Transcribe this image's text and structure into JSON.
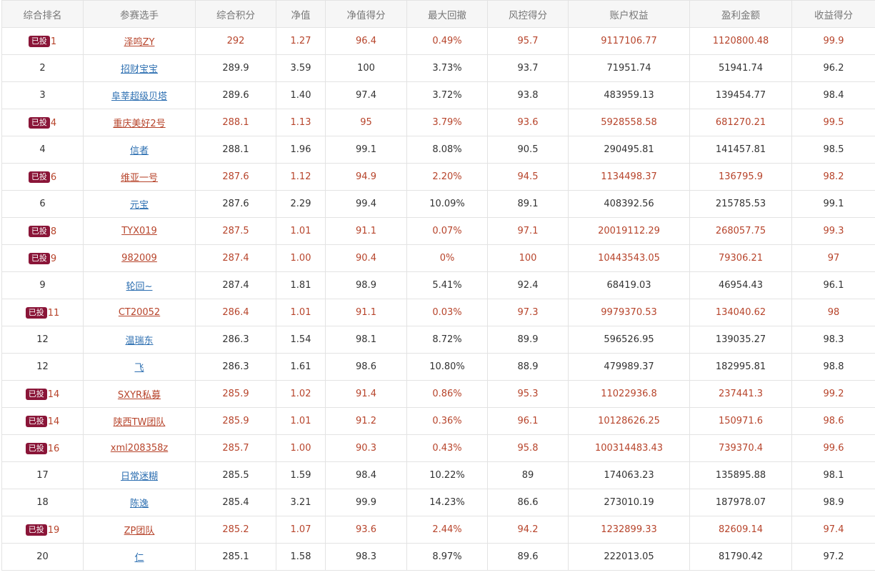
{
  "columns": [
    "综合排名",
    "参赛选手",
    "综合积分",
    "净值",
    "净值得分",
    "最大回撤",
    "风控得分",
    "账户权益",
    "盈利金额",
    "收益得分"
  ],
  "badge_label": "已投",
  "colors": {
    "invested_text": "#b7442b",
    "player_link": "#2d6fb1",
    "badge_bg": "#8a1538",
    "header_bg": "#f6f6f6"
  },
  "rows": [
    {
      "invested": true,
      "rank": "1",
      "player": "泽鸣ZY",
      "score": "292",
      "nav": "1.27",
      "nav_score": "96.4",
      "max_drawdown": "0.49%",
      "risk_score": "95.7",
      "equity": "9117106.77",
      "profit": "1120800.48",
      "return_score": "99.9"
    },
    {
      "invested": false,
      "rank": "2",
      "player": "招财宝宝",
      "score": "289.9",
      "nav": "3.59",
      "nav_score": "100",
      "max_drawdown": "3.73%",
      "risk_score": "93.7",
      "equity": "71951.74",
      "profit": "51941.74",
      "return_score": "96.2"
    },
    {
      "invested": false,
      "rank": "3",
      "player": "阜莘超级贝塔",
      "score": "289.6",
      "nav": "1.40",
      "nav_score": "97.4",
      "max_drawdown": "3.72%",
      "risk_score": "93.8",
      "equity": "483959.13",
      "profit": "139454.77",
      "return_score": "98.4"
    },
    {
      "invested": true,
      "rank": "4",
      "player": "重庆美好2号",
      "score": "288.1",
      "nav": "1.13",
      "nav_score": "95",
      "max_drawdown": "3.79%",
      "risk_score": "93.6",
      "equity": "5928558.58",
      "profit": "681270.21",
      "return_score": "99.5"
    },
    {
      "invested": false,
      "rank": "4",
      "player": "信者",
      "score": "288.1",
      "nav": "1.96",
      "nav_score": "99.1",
      "max_drawdown": "8.08%",
      "risk_score": "90.5",
      "equity": "290495.81",
      "profit": "141457.81",
      "return_score": "98.5"
    },
    {
      "invested": true,
      "rank": "6",
      "player": "维亚一号",
      "score": "287.6",
      "nav": "1.12",
      "nav_score": "94.9",
      "max_drawdown": "2.20%",
      "risk_score": "94.5",
      "equity": "1134498.37",
      "profit": "136795.9",
      "return_score": "98.2"
    },
    {
      "invested": false,
      "rank": "6",
      "player": "元宝",
      "score": "287.6",
      "nav": "2.29",
      "nav_score": "99.4",
      "max_drawdown": "10.09%",
      "risk_score": "89.1",
      "equity": "408392.56",
      "profit": "215785.53",
      "return_score": "99.1"
    },
    {
      "invested": true,
      "rank": "8",
      "player": "TYX019",
      "score": "287.5",
      "nav": "1.01",
      "nav_score": "91.1",
      "max_drawdown": "0.07%",
      "risk_score": "97.1",
      "equity": "20019112.29",
      "profit": "268057.75",
      "return_score": "99.3"
    },
    {
      "invested": true,
      "rank": "9",
      "player": "982009",
      "score": "287.4",
      "nav": "1.00",
      "nav_score": "90.4",
      "max_drawdown": "0%",
      "risk_score": "100",
      "equity": "10443543.05",
      "profit": "79306.21",
      "return_score": "97"
    },
    {
      "invested": false,
      "rank": "9",
      "player": "轮回~",
      "score": "287.4",
      "nav": "1.81",
      "nav_score": "98.9",
      "max_drawdown": "5.41%",
      "risk_score": "92.4",
      "equity": "68419.03",
      "profit": "46954.43",
      "return_score": "96.1"
    },
    {
      "invested": true,
      "rank": "11",
      "player": "CT20052",
      "score": "286.4",
      "nav": "1.01",
      "nav_score": "91.1",
      "max_drawdown": "0.03%",
      "risk_score": "97.3",
      "equity": "9979370.53",
      "profit": "134040.62",
      "return_score": "98"
    },
    {
      "invested": false,
      "rank": "12",
      "player": "温瑞东",
      "score": "286.3",
      "nav": "1.54",
      "nav_score": "98.1",
      "max_drawdown": "8.72%",
      "risk_score": "89.9",
      "equity": "596526.95",
      "profit": "139035.27",
      "return_score": "98.3"
    },
    {
      "invested": false,
      "rank": "12",
      "player": "飞",
      "score": "286.3",
      "nav": "1.61",
      "nav_score": "98.6",
      "max_drawdown": "10.80%",
      "risk_score": "88.9",
      "equity": "479989.37",
      "profit": "182995.81",
      "return_score": "98.8"
    },
    {
      "invested": true,
      "rank": "14",
      "player": "SXYR私募",
      "score": "285.9",
      "nav": "1.02",
      "nav_score": "91.4",
      "max_drawdown": "0.86%",
      "risk_score": "95.3",
      "equity": "11022936.8",
      "profit": "237441.3",
      "return_score": "99.2"
    },
    {
      "invested": true,
      "rank": "14",
      "player": "陕西TW团队",
      "score": "285.9",
      "nav": "1.01",
      "nav_score": "91.2",
      "max_drawdown": "0.36%",
      "risk_score": "96.1",
      "equity": "10128626.25",
      "profit": "150971.6",
      "return_score": "98.6"
    },
    {
      "invested": true,
      "rank": "16",
      "player": "xml208358z",
      "score": "285.7",
      "nav": "1.00",
      "nav_score": "90.3",
      "max_drawdown": "0.43%",
      "risk_score": "95.8",
      "equity": "100314483.43",
      "profit": "739370.4",
      "return_score": "99.6"
    },
    {
      "invested": false,
      "rank": "17",
      "player": "日常迷糊",
      "score": "285.5",
      "nav": "1.59",
      "nav_score": "98.4",
      "max_drawdown": "10.22%",
      "risk_score": "89",
      "equity": "174063.23",
      "profit": "135895.88",
      "return_score": "98.1"
    },
    {
      "invested": false,
      "rank": "18",
      "player": "陈逸",
      "score": "285.4",
      "nav": "3.21",
      "nav_score": "99.9",
      "max_drawdown": "14.23%",
      "risk_score": "86.6",
      "equity": "273010.19",
      "profit": "187978.07",
      "return_score": "98.9"
    },
    {
      "invested": true,
      "rank": "19",
      "player": "ZP团队",
      "score": "285.2",
      "nav": "1.07",
      "nav_score": "93.6",
      "max_drawdown": "2.44%",
      "risk_score": "94.2",
      "equity": "1232899.33",
      "profit": "82609.14",
      "return_score": "97.4"
    },
    {
      "invested": false,
      "rank": "20",
      "player": "仁",
      "score": "285.1",
      "nav": "1.58",
      "nav_score": "98.3",
      "max_drawdown": "8.97%",
      "risk_score": "89.6",
      "equity": "222013.05",
      "profit": "81790.42",
      "return_score": "97.2"
    }
  ]
}
